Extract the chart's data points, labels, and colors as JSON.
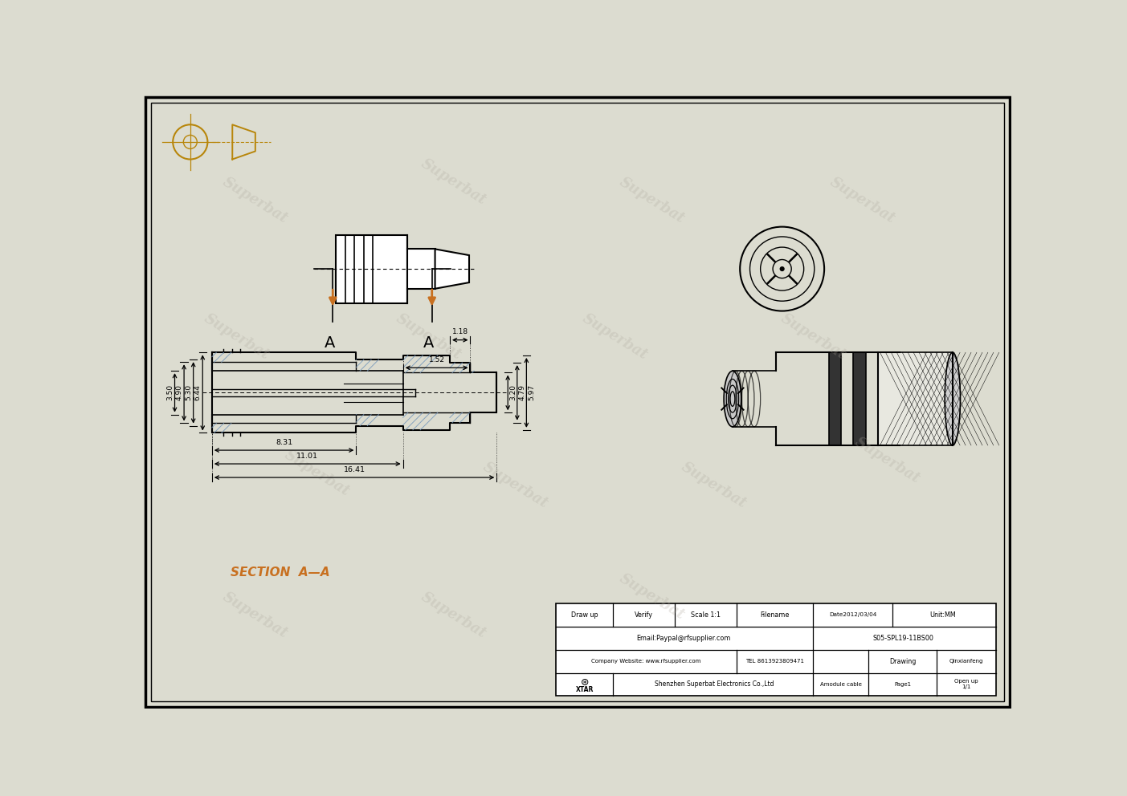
{
  "bg_color": "#dcdcd0",
  "line_color": "#000000",
  "orange_color": "#c87020",
  "hatch_color": "#7799bb",
  "watermark_color": "#b0aaa0",
  "watermark_text": "Superbat",
  "watermark_alpha": 0.28,
  "title_symbols_color": "#b8860b",
  "section_label": "SECTION  A—A",
  "section_label_color": "#c87020",
  "tb_draw_up": "Draw up",
  "tb_verify": "Verify",
  "tb_scale": "Scale 1:1",
  "tb_filename": "Filename",
  "tb_date": "Date2012/03/04",
  "tb_unit": "Unit:MM",
  "tb_email": "Email:Paypal@rfsupplier.com",
  "tb_part_no": "S05-SPL19-11BS00",
  "tb_company_web": "Company Website: www.rfsupplier.com",
  "tb_tel": "TEL 8613923809471",
  "tb_drawing": "Drawing",
  "tb_drafter": "Qinxianfeng",
  "tb_company": "Shenzhen Superbat Electronics Co.,Ltd",
  "tb_module": "Amodule cable",
  "tb_page": "Page1",
  "tb_open_up": "Open up\n1/1",
  "tb_xtar": "XTAR"
}
